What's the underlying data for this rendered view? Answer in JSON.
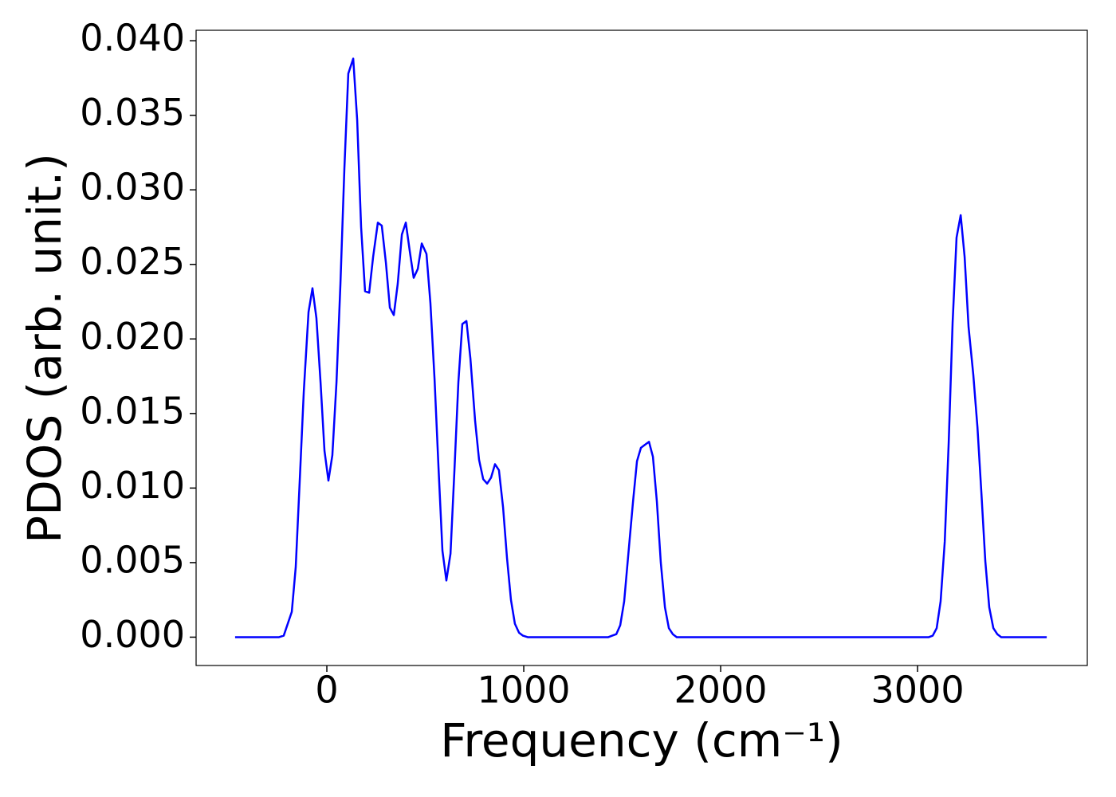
{
  "chart_data": {
    "type": "line",
    "xlabel": "Frequency (cm⁻¹)",
    "ylabel": "PDOS (arb. unit.)",
    "series": [
      {
        "color": "#0000ff",
        "x": [
          -466,
          -243,
          -219,
          -178,
          -158,
          -138,
          -117,
          -93,
          -73,
          -53,
          -32,
          -12,
          8,
          28,
          49,
          69,
          89,
          109,
          134,
          154,
          174,
          194,
          215,
          235,
          259,
          279,
          300,
          320,
          340,
          360,
          381,
          401,
          421,
          441,
          462,
          482,
          506,
          526,
          547,
          567,
          587,
          607,
          628,
          648,
          668,
          688,
          709,
          729,
          753,
          773,
          794,
          814,
          834,
          854,
          874,
          895,
          915,
          935,
          955,
          976,
          996,
          1020,
          1429,
          1449,
          1470,
          1490,
          1510,
          1530,
          1555,
          1575,
          1595,
          1615,
          1636,
          1656,
          1676,
          1696,
          1717,
          1737,
          1757,
          1777,
          3057,
          3077,
          3097,
          3117,
          3138,
          3158,
          3178,
          3198,
          3219,
          3239,
          3259,
          3283,
          3304,
          3324,
          3344,
          3364,
          3385,
          3405,
          3425,
          3656
        ],
        "values": [
          0,
          0,
          0.0001,
          0.0017,
          0.0047,
          0.0104,
          0.0165,
          0.0218,
          0.0234,
          0.0214,
          0.0171,
          0.0125,
          0.0105,
          0.0122,
          0.0171,
          0.0237,
          0.0314,
          0.0378,
          0.0388,
          0.0347,
          0.0275,
          0.0232,
          0.0231,
          0.0255,
          0.0278,
          0.0276,
          0.0251,
          0.0221,
          0.0216,
          0.0237,
          0.027,
          0.0278,
          0.0259,
          0.0241,
          0.0247,
          0.0264,
          0.0257,
          0.0224,
          0.0173,
          0.0114,
          0.0058,
          0.0038,
          0.0056,
          0.0112,
          0.0171,
          0.021,
          0.0212,
          0.0187,
          0.0145,
          0.0119,
          0.0106,
          0.0103,
          0.0107,
          0.0116,
          0.0112,
          0.0087,
          0.0053,
          0.0025,
          0.0009,
          0.0003,
          0.0001,
          0,
          0,
          0.0001,
          0.0002,
          0.0008,
          0.0024,
          0.0054,
          0.0091,
          0.0118,
          0.0127,
          0.0129,
          0.0131,
          0.0121,
          0.0091,
          0.005,
          0.002,
          0.0006,
          0.0002,
          0,
          0,
          0.0001,
          0.0006,
          0.0024,
          0.0064,
          0.013,
          0.0211,
          0.0268,
          0.0283,
          0.0255,
          0.0208,
          0.0176,
          0.0141,
          0.0097,
          0.0051,
          0.002,
          0.0006,
          0.0002,
          0,
          0
        ]
      }
    ],
    "xlim": [
      -664,
      3862
    ],
    "ylim": [
      -0.0019,
      0.0407
    ],
    "xticks": [
      0,
      1000,
      2000,
      3000
    ],
    "yticks": [
      {
        "value": 0,
        "label": "0.000"
      },
      {
        "value": 0.005,
        "label": "0.005"
      },
      {
        "value": 0.01,
        "label": "0.010"
      },
      {
        "value": 0.015,
        "label": "0.015"
      },
      {
        "value": 0.02,
        "label": "0.020"
      },
      {
        "value": 0.025,
        "label": "0.025"
      },
      {
        "value": 0.03,
        "label": "0.030"
      },
      {
        "value": 0.035,
        "label": "0.035"
      },
      {
        "value": 0.04,
        "label": "0.040"
      }
    ]
  }
}
